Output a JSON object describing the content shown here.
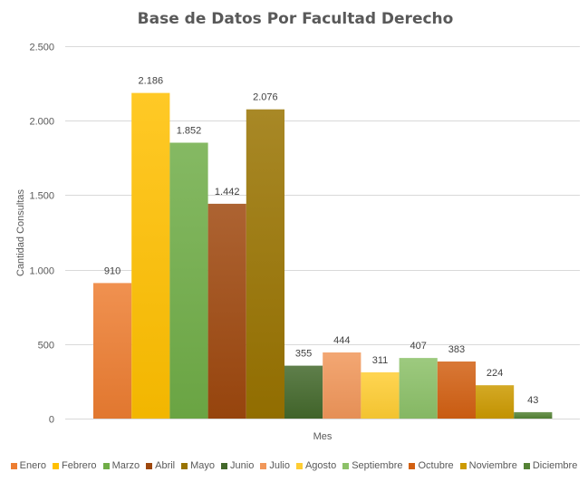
{
  "chart_data": {
    "type": "bar",
    "title": "Base de Datos Por Facultad Derecho",
    "xlabel": "Mes",
    "ylabel": "Cantidad Consultas",
    "ylim": [
      0,
      2500
    ],
    "yticks": [
      0,
      500,
      1000,
      1500,
      2000,
      2500
    ],
    "ytick_labels": [
      "0",
      "500",
      "1.000",
      "1.500",
      "2.000",
      "2.500"
    ],
    "grid": true,
    "legend_position": "bottom",
    "series": [
      {
        "name": "Enero",
        "value": 910,
        "label": "910",
        "color": "#ED7D31"
      },
      {
        "name": "Febrero",
        "value": 2186,
        "label": "2.186",
        "color": "#FFC000"
      },
      {
        "name": "Marzo",
        "value": 1852,
        "label": "1.852",
        "color": "#70AD47"
      },
      {
        "name": "Abril",
        "value": 1442,
        "label": "1.442",
        "color": "#9E480E"
      },
      {
        "name": "Mayo",
        "value": 2076,
        "label": "2.076",
        "color": "#997300"
      },
      {
        "name": "Junio",
        "value": 355,
        "label": "355",
        "color": "#43682B"
      },
      {
        "name": "Julio",
        "value": 444,
        "label": "444",
        "color": "#F1975A"
      },
      {
        "name": "Agosto",
        "value": 311,
        "label": "311",
        "color": "#FFCD33"
      },
      {
        "name": "Septiembre",
        "value": 407,
        "label": "407",
        "color": "#8CC168"
      },
      {
        "name": "Octubre",
        "value": 383,
        "label": "383",
        "color": "#D26012"
      },
      {
        "name": "Noviembre",
        "value": 224,
        "label": "224",
        "color": "#CC9A00"
      },
      {
        "name": "Diciembre",
        "value": 43,
        "label": "43",
        "color": "#548235"
      }
    ]
  }
}
